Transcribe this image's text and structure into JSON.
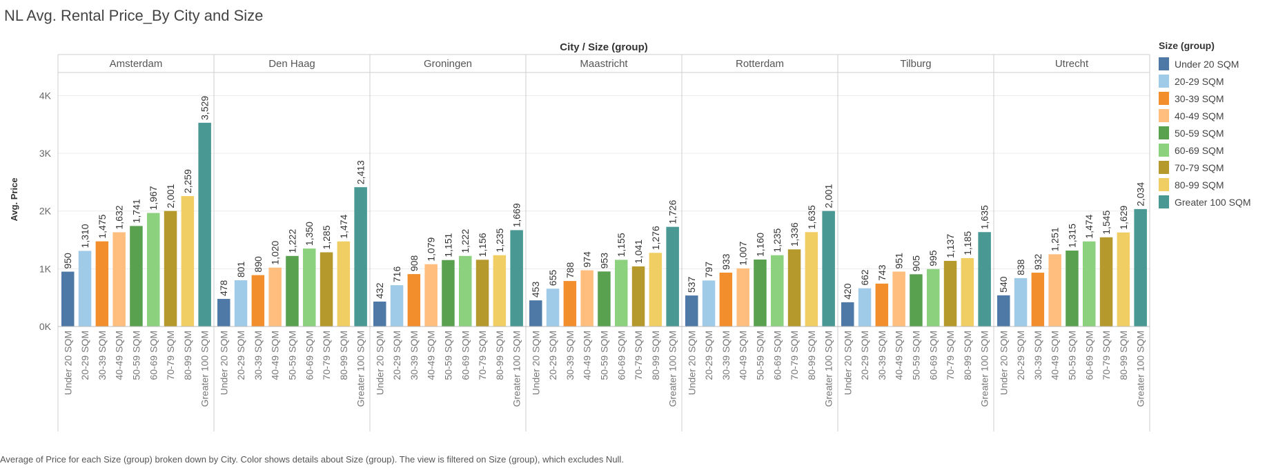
{
  "title": "NL Avg. Rental Price_By City and Size",
  "caption": "Average of Price for each Size (group) broken down by City.  Color shows details about Size (group). The view is filtered on Size (group), which excludes Null.",
  "chart_data": {
    "type": "bar",
    "title": "NL Avg. Rental Price_By City and Size",
    "header": "City  /  Size (group)",
    "ylabel": "Avg. Price",
    "ylim": [
      0,
      4400
    ],
    "yticks": [
      0,
      1000,
      2000,
      3000,
      4000
    ],
    "ytick_labels": [
      "0K",
      "1K",
      "2K",
      "3K",
      "4K"
    ],
    "grid": true,
    "legend_position": "right",
    "legend_title": "Size (group)",
    "sizes": [
      "Under 20 SQM",
      "20-29 SQM",
      "30-39 SQM",
      "40-49 SQM",
      "50-59 SQM",
      "60-69 SQM",
      "70-79 SQM",
      "80-99 SQM",
      "Greater 100 SQM"
    ],
    "colors": [
      "#4e79a7",
      "#a0cbe8",
      "#f28e2b",
      "#ffbe7d",
      "#59a14f",
      "#8cd17d",
      "#b6992d",
      "#f1ce63",
      "#499894"
    ],
    "cities": [
      {
        "name": "Amsterdam",
        "values": [
          950,
          1310,
          1475,
          1632,
          1741,
          1967,
          2001,
          2259,
          3529
        ],
        "labels": [
          "950",
          "1,310",
          "1,475",
          "1,632",
          "1,741",
          "1,967",
          "2,001",
          "2,259",
          "3,529"
        ]
      },
      {
        "name": "Den Haag",
        "values": [
          478,
          801,
          890,
          1020,
          1222,
          1350,
          1285,
          1474,
          2413
        ],
        "labels": [
          "478",
          "801",
          "890",
          "1,020",
          "1,222",
          "1,350",
          "1,285",
          "1,474",
          "2,413"
        ]
      },
      {
        "name": "Groningen",
        "values": [
          432,
          716,
          908,
          1079,
          1151,
          1222,
          1156,
          1235,
          1669
        ],
        "labels": [
          "432",
          "716",
          "908",
          "1,079",
          "1,151",
          "1,222",
          "1,156",
          "1,235",
          "1,669"
        ]
      },
      {
        "name": "Maastricht",
        "values": [
          453,
          655,
          788,
          974,
          953,
          1155,
          1041,
          1276,
          1726
        ],
        "labels": [
          "453",
          "655",
          "788",
          "974",
          "953",
          "1,155",
          "1,041",
          "1,276",
          "1,726"
        ]
      },
      {
        "name": "Rotterdam",
        "values": [
          537,
          797,
          933,
          1007,
          1160,
          1235,
          1336,
          1635,
          2001
        ],
        "labels": [
          "537",
          "797",
          "933",
          "1,007",
          "1,160",
          "1,235",
          "1,336",
          "1,635",
          "2,001"
        ]
      },
      {
        "name": "Tilburg",
        "values": [
          420,
          662,
          743,
          951,
          905,
          995,
          1137,
          1185,
          1635
        ],
        "labels": [
          "420",
          "662",
          "743",
          "951",
          "905",
          "995",
          "1,137",
          "1,185",
          "1,635"
        ]
      },
      {
        "name": "Utrecht",
        "values": [
          540,
          838,
          932,
          1251,
          1315,
          1474,
          1545,
          1629,
          2034
        ],
        "labels": [
          "540",
          "838",
          "932",
          "1,251",
          "1,315",
          "1,474",
          "1,545",
          "1,629",
          "2,034"
        ]
      }
    ]
  }
}
